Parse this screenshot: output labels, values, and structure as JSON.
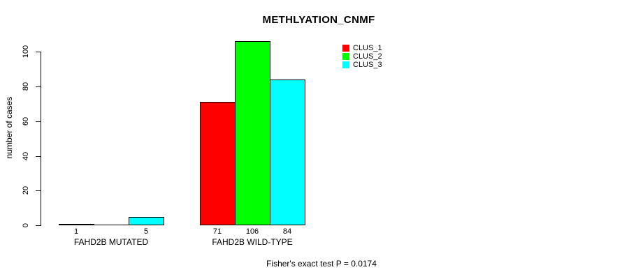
{
  "chart_data": {
    "type": "bar",
    "title": "METHLYATION_CNMF",
    "xlabel": "",
    "ylabel": "number of cases",
    "categories": [
      "FAHD2B MUTATED",
      "FAHD2B WILD-TYPE"
    ],
    "series": [
      {
        "name": "CLUS_1",
        "color": "#ff0000",
        "values": [
          1,
          71
        ]
      },
      {
        "name": "CLUS_2",
        "color": "#00ff00",
        "values": [
          0,
          106
        ]
      },
      {
        "name": "CLUS_3",
        "color": "#00ffff",
        "values": [
          5,
          84
        ]
      }
    ],
    "bar_value_labels_shown": [
      [
        "1",
        "",
        "5"
      ],
      [
        "71",
        "106",
        "84"
      ]
    ],
    "yticks": [
      0,
      20,
      40,
      60,
      80,
      100
    ],
    "ylim": [
      0,
      106
    ],
    "grid": false,
    "legend_position": "top-right",
    "bar_edge_color": "#000000",
    "background_color": "#ffffff",
    "annotation": "Fisher's exact test P = 0.0174"
  }
}
